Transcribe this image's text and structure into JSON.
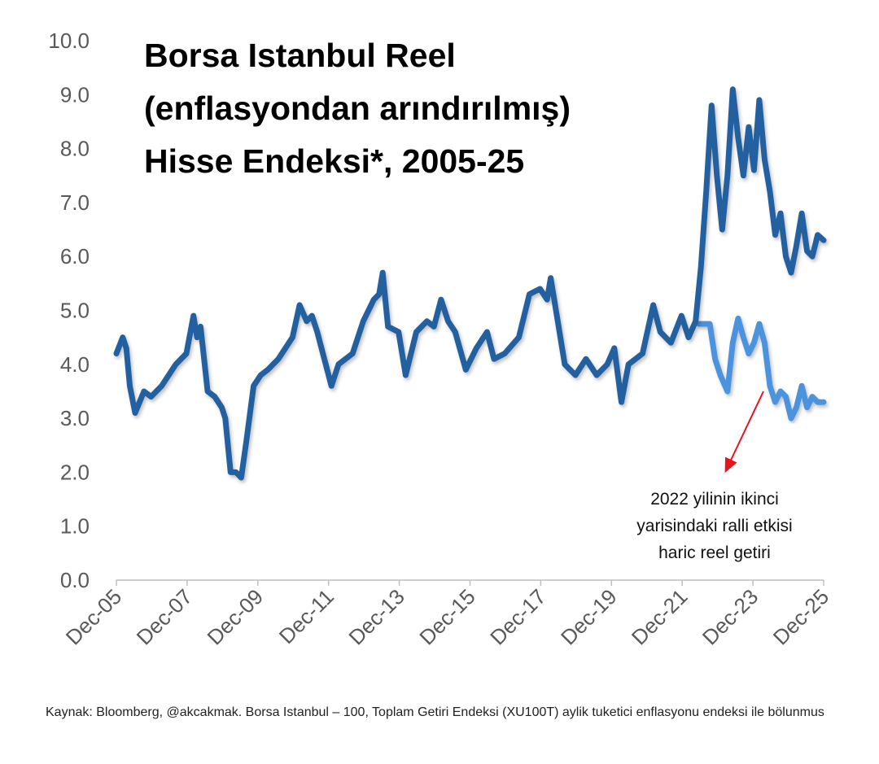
{
  "chart_data": {
    "type": "line",
    "title_lines": [
      "Borsa Istanbul Reel",
      "(enflasyondan arındırılmış)",
      "Hisse Endeksi*, 2005-25"
    ],
    "xlabel": "",
    "ylabel": "",
    "ylim": [
      0,
      10
    ],
    "yticks": [
      "0.0",
      "1.0",
      "2.0",
      "3.0",
      "4.0",
      "5.0",
      "6.0",
      "7.0",
      "8.0",
      "9.0",
      "10.0"
    ],
    "xlim": [
      2005.92,
      2025.92
    ],
    "xticks": [
      "Dec-05",
      "Dec-07",
      "Dec-09",
      "Dec-11",
      "Dec-13",
      "Dec-15",
      "Dec-17",
      "Dec-19",
      "Dec-21",
      "Dec-23",
      "Dec-25"
    ],
    "grid": false,
    "colors": {
      "main": "#23609f",
      "excl_rally": "#4b93dc",
      "arrow": "#e8141c",
      "ticks": "#595959"
    },
    "series": [
      {
        "x": [
          2005.92,
          2006.1,
          2006.2,
          2006.3,
          2006.45,
          2006.7,
          2006.9,
          2007.2,
          2007.4,
          2007.6,
          2007.9,
          2008.1,
          2008.2,
          2008.3,
          2008.5,
          2008.7,
          2008.9,
          2009.0,
          2009.15,
          2009.3,
          2009.45,
          2009.6,
          2009.8,
          2010.0,
          2010.2,
          2010.5,
          2010.9,
          2011.1,
          2011.3,
          2011.45,
          2011.6,
          2011.8,
          2012.0,
          2012.2,
          2012.6,
          2012.9,
          2013.2,
          2013.35,
          2013.45,
          2013.6,
          2013.9,
          2014.1,
          2014.4,
          2014.7,
          2014.9,
          2015.1,
          2015.3,
          2015.5,
          2015.8,
          2016.1,
          2016.4,
          2016.6,
          2016.9,
          2017.3,
          2017.6,
          2017.9,
          2018.1,
          2018.2,
          2018.4,
          2018.6,
          2018.9,
          2019.2,
          2019.5,
          2019.8,
          2020.0,
          2020.2,
          2020.4,
          2020.8,
          2021.1,
          2021.3,
          2021.6,
          2021.9,
          2022.1,
          2022.3,
          2022.45,
          2022.6,
          2022.75,
          2022.9,
          2023.05,
          2023.2,
          2023.35,
          2023.5,
          2023.65,
          2023.8,
          2023.95,
          2024.1,
          2024.25,
          2024.4,
          2024.55,
          2024.7,
          2024.85,
          2025.0,
          2025.15,
          2025.3,
          2025.45,
          2025.6,
          2025.75,
          2025.92
        ],
        "y": [
          4.2,
          4.5,
          4.3,
          3.6,
          3.1,
          3.5,
          3.4,
          3.6,
          3.8,
          4.0,
          4.2,
          4.9,
          4.5,
          4.7,
          3.5,
          3.4,
          3.2,
          3.0,
          2.0,
          2.0,
          1.9,
          2.6,
          3.6,
          3.8,
          3.9,
          4.1,
          4.5,
          5.1,
          4.8,
          4.9,
          4.6,
          4.1,
          3.6,
          4.0,
          4.2,
          4.8,
          5.2,
          5.3,
          5.7,
          4.7,
          4.6,
          3.8,
          4.6,
          4.8,
          4.7,
          5.2,
          4.8,
          4.6,
          3.9,
          4.3,
          4.6,
          4.1,
          4.2,
          4.5,
          5.3,
          5.4,
          5.2,
          5.6,
          4.8,
          4.0,
          3.8,
          4.1,
          3.8,
          4.0,
          4.3,
          3.3,
          4.0,
          4.2,
          5.1,
          4.6,
          4.4,
          4.9,
          4.5,
          4.8,
          5.8,
          7.2,
          8.8,
          7.5,
          6.5,
          7.5,
          9.1,
          8.2,
          7.5,
          8.4,
          7.6,
          8.9,
          7.8,
          7.2,
          6.4,
          6.8,
          6.0,
          5.7,
          6.2,
          6.8,
          6.1,
          6.0,
          6.4,
          6.3
        ]
      },
      {
        "x": [
          2022.4,
          2022.7,
          2022.85,
          2023.0,
          2023.2,
          2023.35,
          2023.5,
          2023.65,
          2023.8,
          2023.95,
          2024.1,
          2024.25,
          2024.4,
          2024.55,
          2024.7,
          2024.85,
          2025.0,
          2025.15,
          2025.3,
          2025.45,
          2025.6,
          2025.75,
          2025.92
        ],
        "y": [
          4.75,
          4.75,
          4.1,
          3.8,
          3.5,
          4.4,
          4.85,
          4.5,
          4.2,
          4.4,
          4.75,
          4.4,
          3.6,
          3.3,
          3.5,
          3.4,
          3.0,
          3.2,
          3.6,
          3.2,
          3.4,
          3.3,
          3.3
        ]
      }
    ],
    "annotation": {
      "lines": [
        "2022 yilinin ikinci",
        "yarisindaki ralli etkisi",
        "haric reel getiri"
      ]
    }
  },
  "source": "Kaynak: Bloomberg, @akcakmak. Borsa Istanbul – 100, Toplam Getiri Endeksi (XU100T) aylik tuketici enflasyonu endeksi ile bölunmus"
}
